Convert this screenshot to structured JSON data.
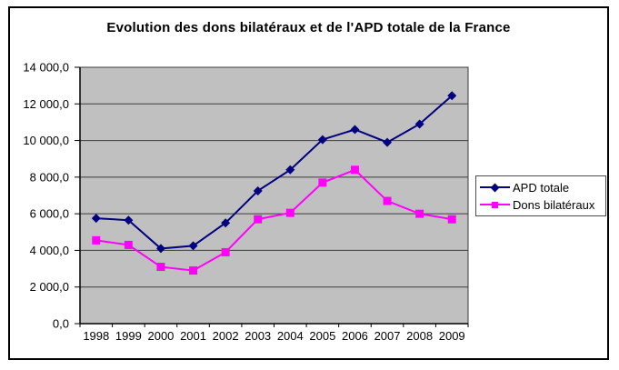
{
  "chart_data": {
    "type": "line",
    "title": "Evolution des dons bilatéraux et de l'APD totale de la France",
    "categories": [
      "1998",
      "1999",
      "2000",
      "2001",
      "2002",
      "2003",
      "2004",
      "2005",
      "2006",
      "2007",
      "2008",
      "2009"
    ],
    "series": [
      {
        "name": "APD totale",
        "color": "#000080",
        "marker": "diamond",
        "values": [
          5750,
          5650,
          4100,
          4250,
          5500,
          7250,
          8400,
          10050,
          10600,
          9900,
          10900,
          12450
        ]
      },
      {
        "name": "Dons bilatéraux",
        "color": "#ff00ff",
        "marker": "square",
        "values": [
          4550,
          4300,
          3100,
          2900,
          3900,
          5700,
          6050,
          7700,
          8400,
          6700,
          6000,
          5700
        ]
      }
    ],
    "xlabel": "",
    "ylabel": "",
    "ylim": [
      0,
      14000
    ],
    "y_tick_step": 2000,
    "y_tick_labels": [
      "0,0",
      "2 000,0",
      "4 000,0",
      "6 000,0",
      "8 000,0",
      "10 000,0",
      "12 000,0",
      "14 000,0"
    ],
    "grid": true,
    "legend_position": "right",
    "plot_background": "#c0c0c0",
    "gridline_color": "#3d3d3d",
    "axis_color": "#000000",
    "outer_border_color": "#000000"
  }
}
